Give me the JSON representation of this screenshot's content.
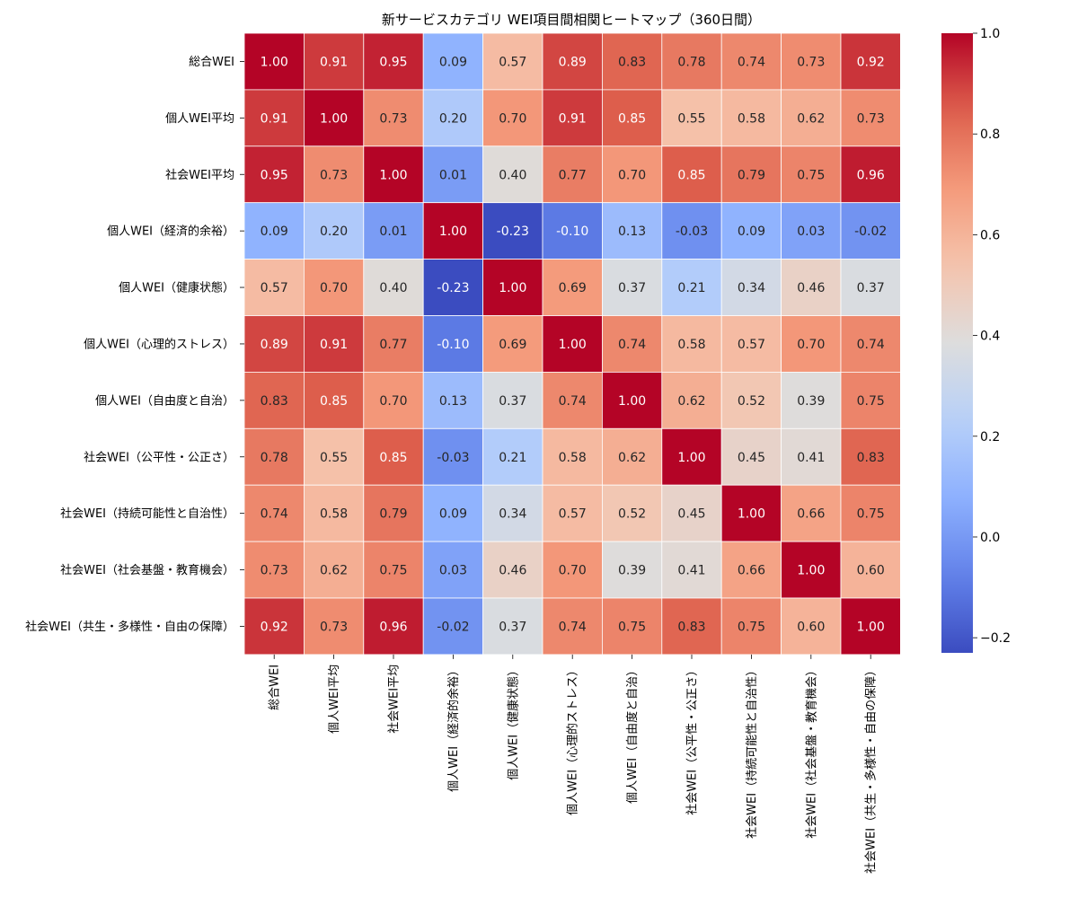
{
  "chart_data": {
    "type": "heatmap",
    "title": "新サービスカテゴリ WEI項目間相関ヒートマップ（360日間）",
    "labels": [
      "総合WEI",
      "個人WEI平均",
      "社会WEI平均",
      "個人WEI（経済的余裕）",
      "個人WEI（健康状態）",
      "個人WEI（心理的ストレス）",
      "個人WEI（自由度と自治）",
      "社会WEI（公平性・公正さ）",
      "社会WEI（持続可能性と自治性）",
      "社会WEI（社会基盤・教育機会）",
      "社会WEI（共生・多様性・自由の保障）"
    ],
    "values": [
      [
        1.0,
        0.91,
        0.95,
        0.09,
        0.57,
        0.89,
        0.83,
        0.78,
        0.74,
        0.73,
        0.92
      ],
      [
        0.91,
        1.0,
        0.73,
        0.2,
        0.7,
        0.91,
        0.85,
        0.55,
        0.58,
        0.62,
        0.73
      ],
      [
        0.95,
        0.73,
        1.0,
        0.01,
        0.4,
        0.77,
        0.7,
        0.85,
        0.79,
        0.75,
        0.96
      ],
      [
        0.09,
        0.2,
        0.01,
        1.0,
        -0.23,
        -0.1,
        0.13,
        -0.03,
        0.09,
        0.03,
        -0.02
      ],
      [
        0.57,
        0.7,
        0.4,
        -0.23,
        1.0,
        0.69,
        0.37,
        0.21,
        0.34,
        0.46,
        0.37
      ],
      [
        0.89,
        0.91,
        0.77,
        -0.1,
        0.69,
        1.0,
        0.74,
        0.58,
        0.57,
        0.7,
        0.74
      ],
      [
        0.83,
        0.85,
        0.7,
        0.13,
        0.37,
        0.74,
        1.0,
        0.62,
        0.52,
        0.39,
        0.75
      ],
      [
        0.78,
        0.55,
        0.85,
        -0.03,
        0.21,
        0.58,
        0.62,
        1.0,
        0.45,
        0.41,
        0.83
      ],
      [
        0.74,
        0.58,
        0.79,
        0.09,
        0.34,
        0.57,
        0.52,
        0.45,
        1.0,
        0.66,
        0.75
      ],
      [
        0.73,
        0.62,
        0.75,
        0.03,
        0.46,
        0.7,
        0.39,
        0.41,
        0.66,
        1.0,
        0.6
      ],
      [
        0.92,
        0.73,
        0.96,
        -0.02,
        0.37,
        0.74,
        0.75,
        0.83,
        0.75,
        0.6,
        1.0
      ]
    ],
    "colormap": "coolwarm",
    "vmin": -0.23,
    "vmax": 1.0,
    "colorbar_ticks": [
      1.0,
      0.8,
      0.6,
      0.4,
      0.2,
      0.0,
      -0.2
    ],
    "colorbar_tick_labels": [
      "1.0",
      "0.8",
      "0.6",
      "0.4",
      "0.2",
      "0.0",
      "−0.2"
    ]
  }
}
